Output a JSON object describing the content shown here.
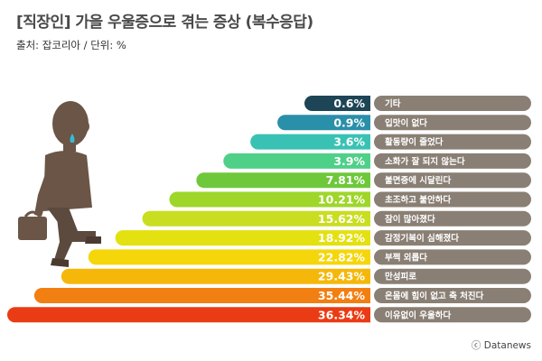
{
  "header": {
    "title": "[직장인] 가을 우울증으로 겪는 증상 (복수응답)",
    "source": "출처:  잡코리아 / 단위: %"
  },
  "footer": {
    "credit": "ⓒ Datanews"
  },
  "chart_data": {
    "type": "bar",
    "title": "[직장인] 가을 우울증으로 겪는 증상 (복수응답)",
    "unit": "%",
    "orientation": "horizontal-staircase",
    "categories": [
      "기타",
      "입맛이 없다",
      "활동량이 줄었다",
      "소화가 잘 되지 않는다",
      "불면증에 시달린다",
      "초조하고 불안하다",
      "잠이 많아졌다",
      "감정기복이 심해졌다",
      "부쩍 외롭다",
      "만성피로",
      "온몸에 힘이 없고 축 처진다",
      "이유없이 우울하다"
    ],
    "values": [
      0.6,
      0.9,
      3.6,
      3.9,
      7.81,
      10.21,
      15.62,
      18.92,
      22.82,
      29.43,
      35.44,
      36.34
    ],
    "value_labels": [
      "0.6%",
      "0.9%",
      "3.6%",
      "3.9%",
      "7.81%",
      "10.21%",
      "15.62%",
      "18.92%",
      "22.82%",
      "29.43%",
      "35.44%",
      "36.34%"
    ],
    "colors": [
      "#1d4555",
      "#2a8fa8",
      "#39c2b4",
      "#4fd088",
      "#6ec83a",
      "#9ed62a",
      "#c9de20",
      "#e3e10f",
      "#f5d60a",
      "#f5b80a",
      "#f27f12",
      "#ea3c14"
    ],
    "label_box_color": "#8a7f74",
    "legend": "none",
    "grid": false
  }
}
